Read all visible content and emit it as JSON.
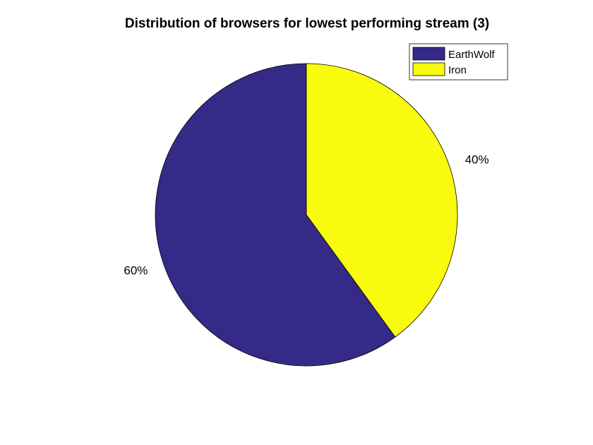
{
  "chart_data": {
    "type": "pie",
    "title": "Distribution of browsers for lowest performing stream (3)",
    "categories": [
      "EarthWolf",
      "Iron"
    ],
    "values": [
      60,
      40
    ],
    "labels": [
      "60%",
      "40%"
    ],
    "colors": [
      "#352A87",
      "#F9FB0E"
    ],
    "legend": {
      "entries": [
        "EarthWolf",
        "Iron"
      ],
      "placement": "top-right"
    }
  }
}
